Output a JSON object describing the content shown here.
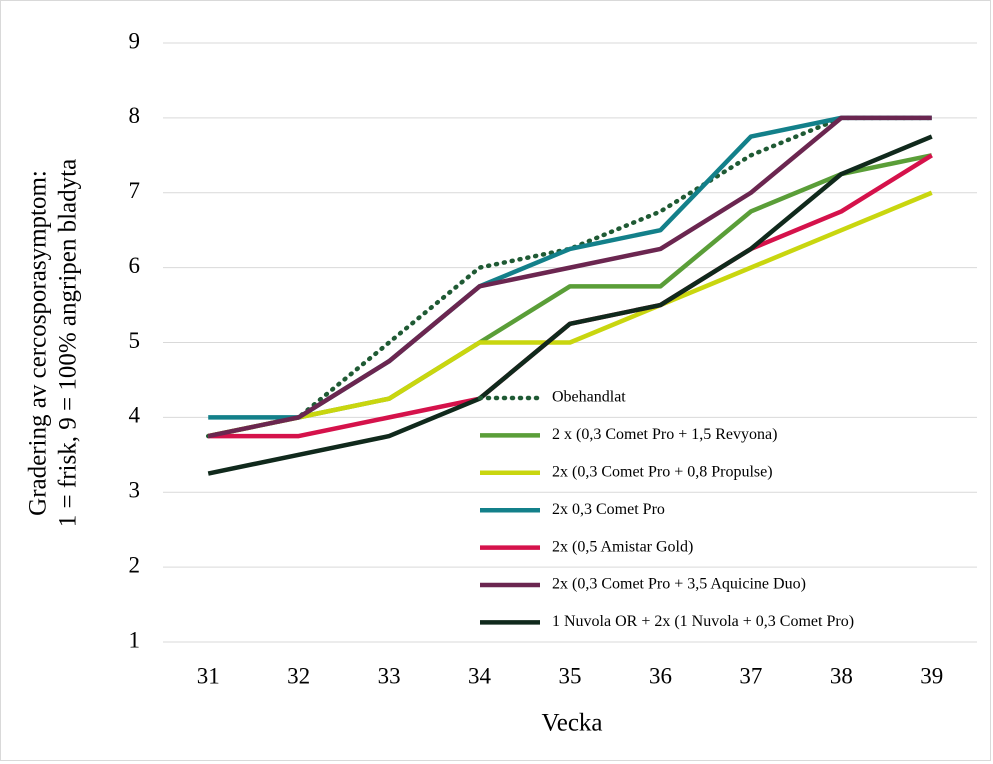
{
  "chart_data": {
    "type": "line",
    "xlabel": "Vecka",
    "ylabel": [
      "Gradering av cercosporasymptom:",
      "1 = frisk, 9 = 100% angripen bladyta"
    ],
    "categories": [
      "31",
      "32",
      "33",
      "34",
      "35",
      "36",
      "37",
      "38",
      "39"
    ],
    "ylim": [
      1,
      9
    ],
    "yticks": [
      1,
      2,
      3,
      4,
      5,
      6,
      7,
      8,
      9
    ],
    "grid": true,
    "legend": "lower right",
    "series": [
      {
        "name": "Obehandlat",
        "color": "#1f5a34",
        "style": "dotted",
        "values": [
          3.75,
          4,
          5,
          6,
          6.25,
          6.75,
          7.5,
          8,
          8
        ]
      },
      {
        "name": "2 x (0,3 Comet Pro + 1,5 Revyona)",
        "color": "#5a9e38",
        "values": [
          3.75,
          4,
          4.25,
          5,
          5.75,
          5.75,
          6.75,
          7.25,
          7.5
        ]
      },
      {
        "name": "2x (0,3 Comet Pro + 0,8 Propulse)",
        "color": "#c9d60f",
        "values": [
          3.75,
          4,
          4.25,
          5,
          5,
          5.5,
          6,
          6.5,
          7
        ]
      },
      {
        "name": "2x 0,3 Comet Pro",
        "color": "#13808a",
        "values": [
          4,
          4,
          4.75,
          5.75,
          6.25,
          6.5,
          7.75,
          8,
          8
        ]
      },
      {
        "name": "2x (0,5 Amistar Gold)",
        "color": "#d5124b",
        "values": [
          3.75,
          3.75,
          4,
          4.25,
          5.25,
          5.5,
          6.25,
          6.75,
          7.5
        ]
      },
      {
        "name": "2x (0,3 Comet Pro + 3,5 Aquicine Duo)",
        "color": "#6b2650",
        "values": [
          3.75,
          4,
          4.75,
          5.75,
          6,
          6.25,
          7,
          8,
          8
        ]
      },
      {
        "name": "1 Nuvola OR + 2x (1 Nuvola + 0,3 Comet Pro)",
        "color": "#10291c",
        "values": [
          3.25,
          3.5,
          3.75,
          4.25,
          5.25,
          5.5,
          6.25,
          7.25,
          7.75
        ]
      }
    ]
  }
}
